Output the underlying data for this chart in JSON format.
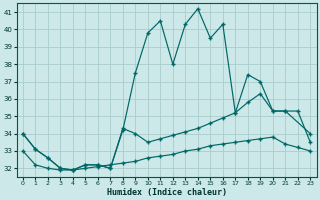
{
  "xlabel": "Humidex (Indice chaleur)",
  "bg_color": "#cce8e8",
  "grid_color": "#aacccc",
  "line_color": "#006666",
  "xlim": [
    -0.5,
    23.5
  ],
  "ylim": [
    31.5,
    41.5
  ],
  "yticks": [
    32,
    33,
    34,
    35,
    36,
    37,
    38,
    39,
    40,
    41
  ],
  "xticks": [
    0,
    1,
    2,
    3,
    4,
    5,
    6,
    7,
    8,
    9,
    10,
    11,
    12,
    13,
    14,
    15,
    16,
    17,
    18,
    19,
    20,
    21,
    22,
    23
  ],
  "series": [
    {
      "x": [
        0,
        1,
        2,
        3,
        4,
        5,
        6,
        7,
        8,
        9,
        10,
        11,
        12,
        13,
        14,
        15,
        16,
        17,
        18,
        19,
        20,
        21,
        22,
        23
      ],
      "y": [
        33.0,
        32.2,
        32.0,
        31.9,
        31.9,
        32.0,
        32.1,
        32.2,
        32.3,
        32.4,
        32.6,
        32.7,
        32.8,
        33.0,
        33.1,
        33.3,
        33.4,
        33.5,
        33.6,
        33.7,
        33.8,
        33.4,
        33.2,
        33.0
      ]
    },
    {
      "x": [
        0,
        1,
        2,
        3,
        4,
        5,
        6,
        7,
        8,
        9,
        10,
        11,
        12,
        13,
        14,
        15,
        16,
        17,
        18,
        19,
        20,
        21,
        22,
        23
      ],
      "y": [
        34.0,
        33.1,
        32.6,
        32.0,
        31.9,
        32.2,
        32.2,
        32.0,
        34.3,
        34.0,
        33.5,
        33.7,
        33.9,
        34.1,
        34.3,
        34.6,
        34.9,
        35.2,
        35.8,
        36.3,
        35.3,
        35.3,
        35.3,
        33.5
      ]
    },
    {
      "x": [
        0,
        1,
        2,
        3,
        4,
        5,
        6,
        7,
        8,
        9,
        10,
        11,
        12,
        13,
        14,
        15,
        16,
        17,
        18,
        19,
        20,
        21,
        23
      ],
      "y": [
        34.0,
        33.1,
        32.6,
        32.0,
        31.9,
        32.2,
        32.2,
        32.0,
        34.2,
        37.5,
        39.8,
        40.5,
        38.0,
        40.3,
        41.2,
        39.5,
        40.3,
        35.2,
        37.4,
        37.0,
        35.3,
        35.3,
        34.0
      ]
    }
  ]
}
